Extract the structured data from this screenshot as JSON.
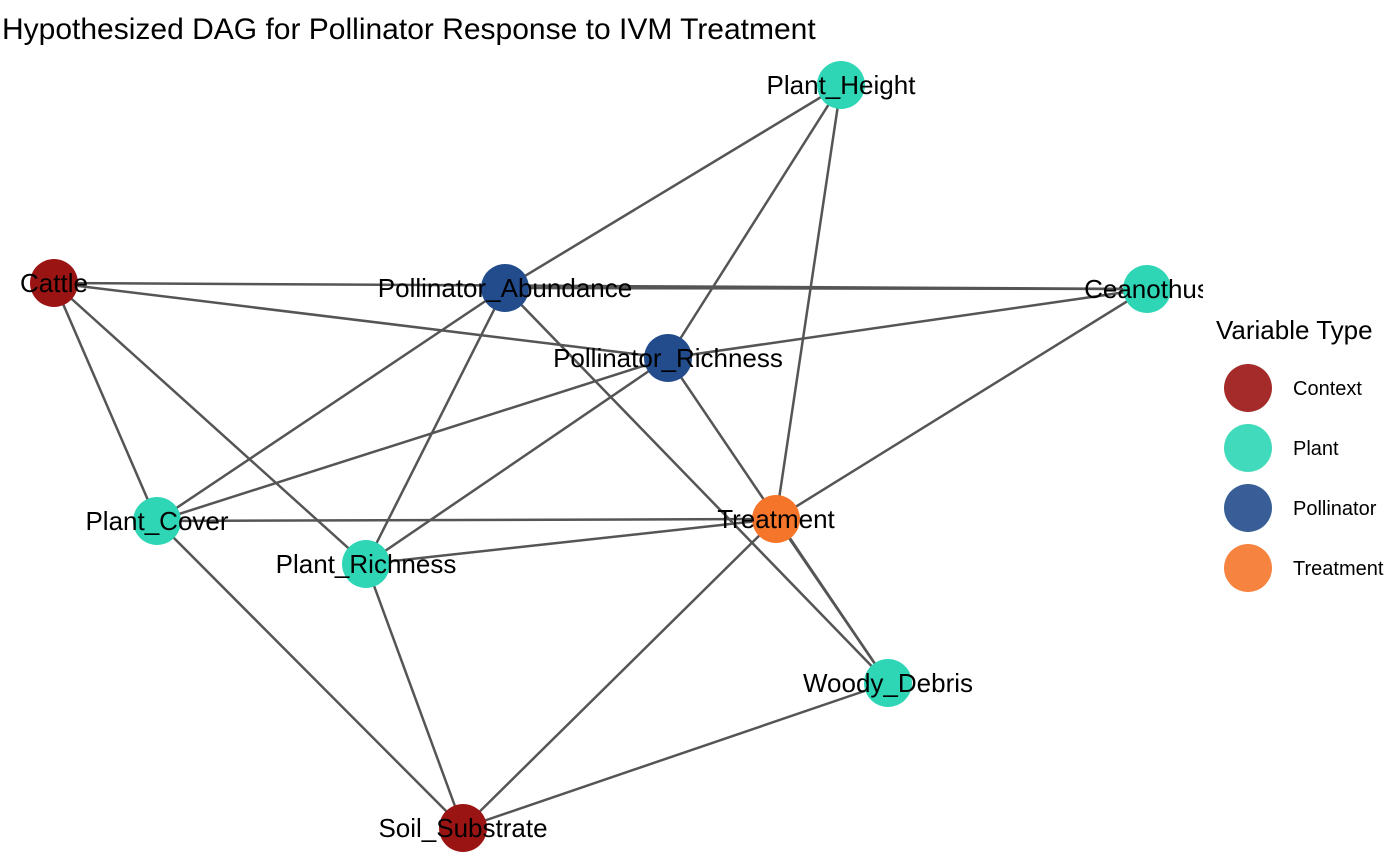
{
  "title": "Hypothesized DAG for Pollinator Response to IVM Treatment",
  "legend": {
    "title": "Variable Type",
    "items": [
      {
        "key": "Context",
        "label": "Context",
        "color": "#9B1414"
      },
      {
        "key": "Plant",
        "label": "Plant",
        "color": "#2ED6B6"
      },
      {
        "key": "Pollinator",
        "label": "Pollinator",
        "color": "#234C8C"
      },
      {
        "key": "Treatment",
        "label": "Treatment",
        "color": "#F5762A"
      }
    ]
  },
  "nodes": [
    {
      "id": "cattle",
      "label": "Cattle",
      "type": "Context"
    },
    {
      "id": "pollinator_abundance",
      "label": "Pollinator_Abundance",
      "type": "Pollinator"
    },
    {
      "id": "pollinator_richness",
      "label": "Pollinator_Richness",
      "type": "Pollinator"
    },
    {
      "id": "plant_height",
      "label": "Plant_Height",
      "type": "Plant"
    },
    {
      "id": "ceanothus",
      "label": "Ceanothus",
      "type": "Plant"
    },
    {
      "id": "plant_cover",
      "label": "Plant_Cover",
      "type": "Plant"
    },
    {
      "id": "plant_richness",
      "label": "Plant_Richness",
      "type": "Plant"
    },
    {
      "id": "treatment",
      "label": "Treatment",
      "type": "Treatment"
    },
    {
      "id": "woody_debris",
      "label": "Woody_Debris",
      "type": "Plant"
    },
    {
      "id": "soil_substrate",
      "label": "Soil_Substrate",
      "type": "Context"
    }
  ],
  "edges": [
    [
      "cattle",
      "ceanothus"
    ],
    [
      "cattle",
      "pollinator_richness"
    ],
    [
      "cattle",
      "plant_cover"
    ],
    [
      "cattle",
      "plant_richness"
    ],
    [
      "plant_height",
      "pollinator_abundance"
    ],
    [
      "plant_height",
      "pollinator_richness"
    ],
    [
      "plant_height",
      "treatment"
    ],
    [
      "pollinator_abundance",
      "ceanothus"
    ],
    [
      "pollinator_abundance",
      "plant_cover"
    ],
    [
      "pollinator_abundance",
      "plant_richness"
    ],
    [
      "pollinator_abundance",
      "woody_debris"
    ],
    [
      "pollinator_richness",
      "ceanothus"
    ],
    [
      "pollinator_richness",
      "plant_cover"
    ],
    [
      "pollinator_richness",
      "plant_richness"
    ],
    [
      "pollinator_richness",
      "woody_debris"
    ],
    [
      "ceanothus",
      "treatment"
    ],
    [
      "plant_cover",
      "treatment"
    ],
    [
      "plant_cover",
      "soil_substrate"
    ],
    [
      "plant_richness",
      "treatment"
    ],
    [
      "plant_richness",
      "soil_substrate"
    ],
    [
      "treatment",
      "woody_debris"
    ],
    [
      "treatment",
      "soil_substrate"
    ],
    [
      "woody_debris",
      "soil_substrate"
    ]
  ]
}
